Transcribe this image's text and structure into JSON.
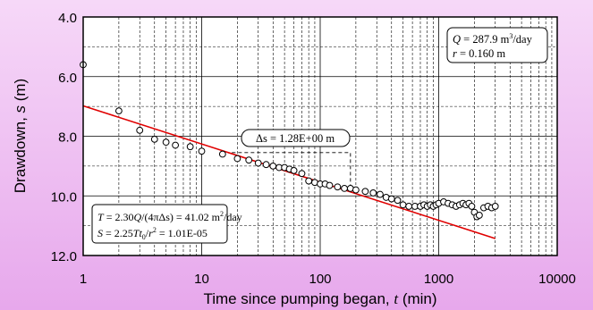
{
  "chart_data": {
    "type": "scatter",
    "title": "",
    "x_scale": "log",
    "y_inverted": true,
    "xlim": [
      1,
      10000
    ],
    "ylim": [
      4.0,
      12.0
    ],
    "x_ticks": [
      "1",
      "10",
      "100",
      "1000",
      "10000"
    ],
    "y_ticks": [
      "4.0",
      "6.0",
      "8.0",
      "10.0",
      "12.0"
    ],
    "xlabel_text": "Time since pumping began, ",
    "xlabel_var": "t",
    "xlabel_unit": " (min)",
    "ylabel_text": "Drawdown, ",
    "ylabel_var": "s",
    "ylabel_unit": " (m)",
    "grid": true,
    "observed": {
      "t": [
        1,
        2,
        3,
        4,
        5,
        6,
        8,
        10,
        15,
        20,
        25,
        30,
        35,
        40,
        45,
        50,
        55,
        60,
        70,
        80,
        90,
        100,
        110,
        120,
        140,
        160,
        180,
        200,
        240,
        280,
        320,
        360,
        400,
        450,
        500,
        560,
        630,
        700,
        750,
        800,
        850,
        900,
        950,
        1000,
        1100,
        1200,
        1300,
        1400,
        1500,
        1600,
        1700,
        1800,
        1900,
        2000,
        2100,
        2200,
        2400,
        2600,
        2800,
        3000
      ],
      "s": [
        5.6,
        7.15,
        7.8,
        8.1,
        8.2,
        8.3,
        8.35,
        8.5,
        8.6,
        8.75,
        8.8,
        8.9,
        8.95,
        9.0,
        9.05,
        9.05,
        9.1,
        9.15,
        9.25,
        9.5,
        9.55,
        9.6,
        9.6,
        9.65,
        9.7,
        9.75,
        9.75,
        9.8,
        9.85,
        9.9,
        9.95,
        10.05,
        10.1,
        10.15,
        10.3,
        10.35,
        10.35,
        10.35,
        10.3,
        10.35,
        10.3,
        10.35,
        10.3,
        10.25,
        10.2,
        10.25,
        10.3,
        10.35,
        10.3,
        10.25,
        10.3,
        10.25,
        10.35,
        10.55,
        10.7,
        10.65,
        10.4,
        10.35,
        10.4,
        10.35
      ]
    },
    "fit_line": {
      "t": [
        1,
        3000
      ],
      "s": [
        6.98,
        11.43
      ],
      "color": "#e00000"
    },
    "delta_marker": {
      "t_start": 18,
      "t_end": 180,
      "s_top": 8.55,
      "s_bottom": 9.83
    },
    "annotations": {
      "delta_box": {
        "label": "Δs = 1.28E+00 m"
      },
      "q_box": {
        "line1_var": "Q",
        "line1_rest": " = 287.9 m",
        "line1_sup": "3",
        "line1_tail": "/day",
        "line2_var": "r",
        "line2_rest": " = 0.160 m"
      },
      "t_box": {
        "line1_var": "T",
        "line1_eq": " = 2.30",
        "line1_q": "Q",
        "line1_mid": "/(4πΔs) = 41.02 m",
        "line1_sup": "2",
        "line1_tail": "/day",
        "line2_var": "S",
        "line2_eq": " = 2.25",
        "line2_t": "Tt",
        "line2_sub": "0",
        "line2_slash": "/",
        "line2_r": "r",
        "line2_rsup": "2",
        "line2_tail": " = 1.01E-05"
      }
    },
    "colors": {
      "marker": "#000000",
      "fit": "#e00000",
      "plot_bg": "#ffffff",
      "frame": "#000000"
    }
  }
}
